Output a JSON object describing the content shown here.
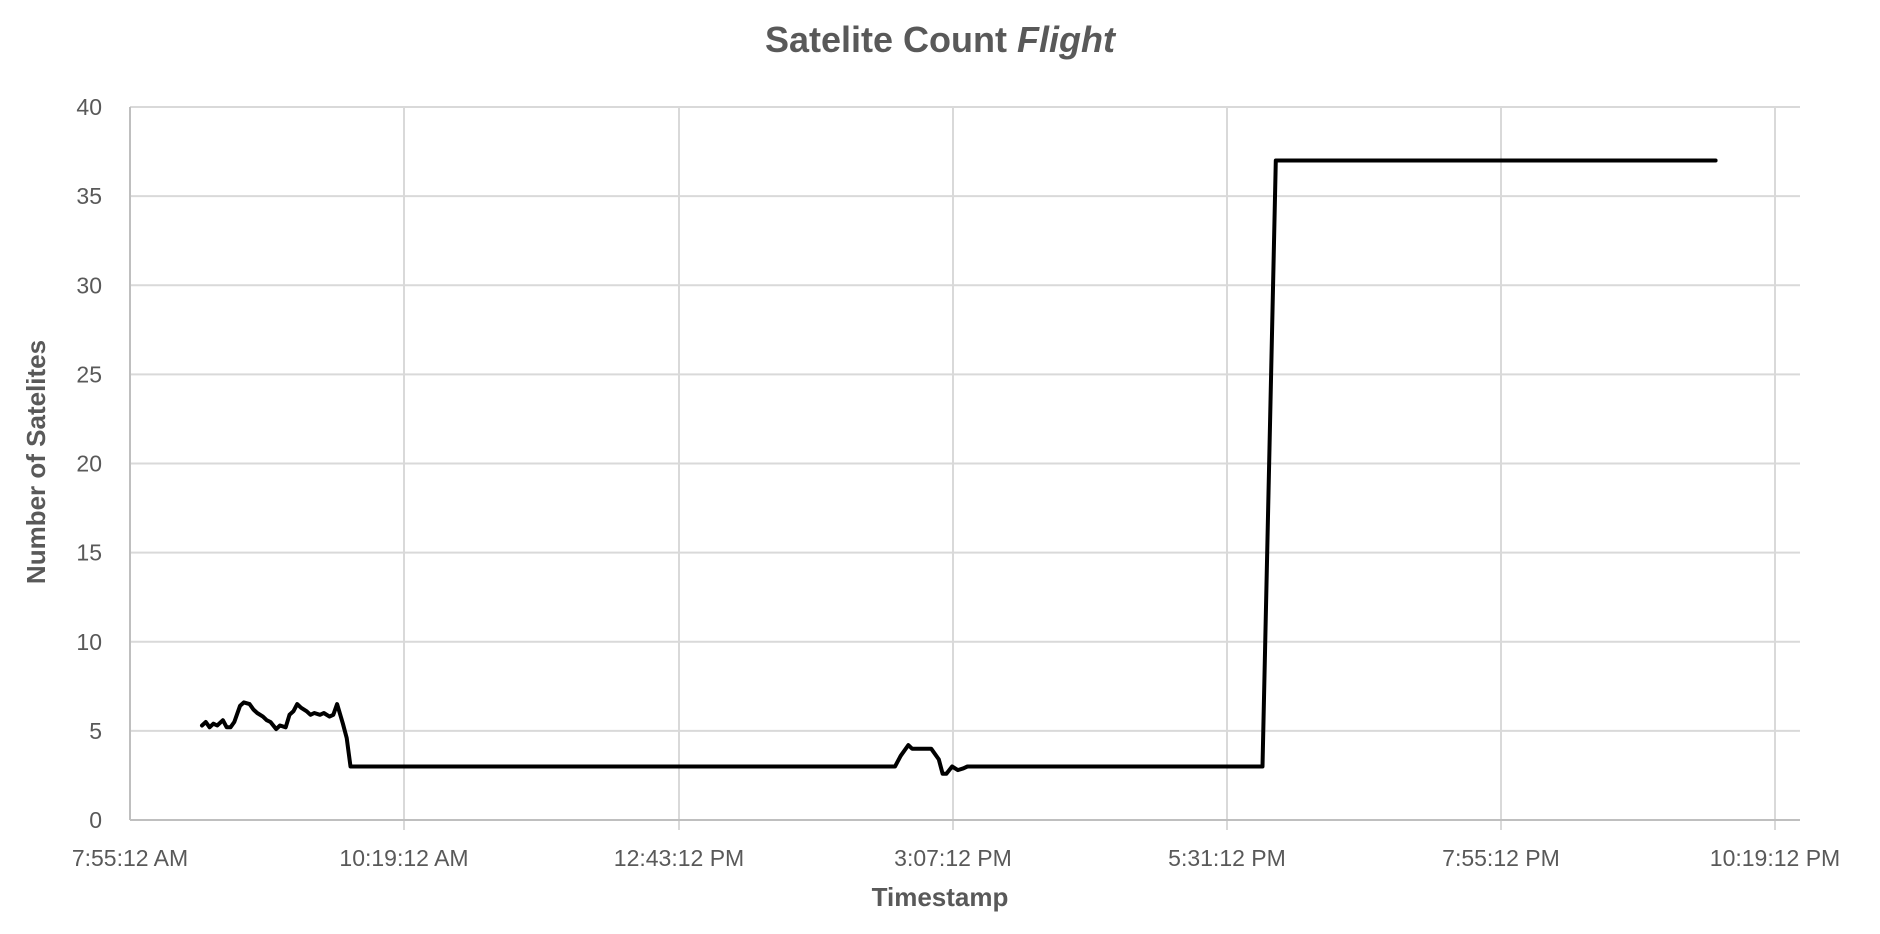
{
  "chart_data": {
    "type": "line",
    "title": "Satelite Count",
    "title_emphasis": "Flight",
    "xlabel": "Timestamp",
    "ylabel": "Number of Satelites",
    "ylim": [
      0,
      40
    ],
    "y_ticks": [
      "0",
      "5",
      "10",
      "15",
      "20",
      "25",
      "30",
      "35",
      "40"
    ],
    "x_ticks": [
      "7:55:12 AM",
      "10:19:12 AM",
      "12:43:12 PM",
      "3:07:12 PM",
      "5:31:12 PM",
      "7:55:12 PM",
      "10:19:12 PM"
    ],
    "x_minor_ticks": [
      "10:19:12 PM"
    ],
    "grid": true,
    "legend": "none",
    "series_color": "#000000",
    "series": [
      {
        "x": [
          "8:33:00 AM",
          "8:35:00 AM",
          "8:37:00 AM",
          "8:39:00 AM",
          "8:41:00 AM",
          "8:44:00 AM",
          "8:46:00 AM",
          "8:48:00 AM",
          "8:50:00 AM",
          "8:53:00 AM",
          "8:55:00 AM",
          "8:58:00 AM",
          "9:00:00 AM",
          "9:02:00 AM",
          "9:05:00 AM",
          "9:07:00 AM",
          "9:09:00 AM",
          "9:12:00 AM",
          "9:14:00 AM",
          "9:17:00 AM",
          "9:19:00 AM",
          "9:21:00 AM",
          "9:23:00 AM",
          "9:25:00 AM",
          "9:28:00 AM",
          "9:30:00 AM",
          "9:32:00 AM",
          "9:35:00 AM",
          "9:37:00 AM",
          "9:40:00 AM",
          "9:42:00 AM",
          "9:44:00 AM",
          "9:47:00 AM",
          "9:49:00 AM",
          "9:51:00 AM",
          "9:54:00 AM",
          "9:56:00 AM",
          "9:58:00 AM",
          "10:00:00 AM",
          "10:03:00 AM",
          "10:06:00 AM",
          "2:37:00 PM",
          "2:40:00 PM",
          "2:44:00 PM",
          "2:46:00 PM",
          "2:56:00 PM",
          "3:00:00 PM",
          "3:02:00 PM",
          "3:04:00 PM",
          "3:07:00 PM",
          "3:10:00 PM",
          "3:13:00 PM",
          "3:15:00 PM",
          "3:18:00 PM",
          "3:21:00 PM",
          "3:24:00 PM",
          "3:27:00 PM",
          "5:50:00 PM",
          "5:57:00 PM",
          "9:48:00 PM"
        ],
        "values": [
          5.3,
          5.5,
          5.2,
          5.4,
          5.3,
          5.6,
          5.2,
          5.2,
          5.5,
          6.4,
          6.6,
          6.5,
          6.2,
          6.0,
          5.8,
          5.6,
          5.5,
          5.1,
          5.3,
          5.2,
          5.9,
          6.1,
          6.5,
          6.3,
          6.1,
          5.9,
          6.0,
          5.9,
          6.0,
          5.8,
          5.9,
          6.5,
          5.4,
          4.6,
          3.0,
          3.0,
          3.0,
          3.0,
          3.0,
          3.0,
          3.0,
          3.0,
          3.6,
          4.2,
          4.0,
          4.0,
          3.4,
          2.6,
          2.6,
          3.0,
          2.8,
          2.9,
          3.0,
          3.0,
          3.0,
          3.0,
          3.0,
          3.0,
          37.0,
          37.0
        ]
      }
    ]
  }
}
